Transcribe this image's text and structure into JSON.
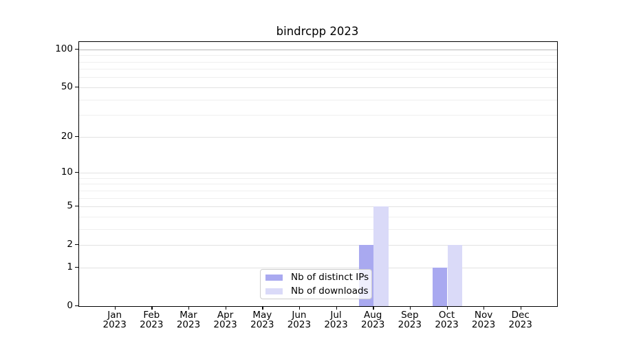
{
  "chart_data": {
    "type": "bar",
    "title": "bindrcpp 2023",
    "year": "2023",
    "categories": [
      "Jan",
      "Feb",
      "Mar",
      "Apr",
      "May",
      "Jun",
      "Jul",
      "Aug",
      "Sep",
      "Oct",
      "Nov",
      "Dec"
    ],
    "series": [
      {
        "name": "Nb of distinct IPs",
        "color": "#a9a9f0",
        "values": [
          0,
          0,
          0,
          0,
          0,
          0,
          0,
          2,
          0,
          1,
          0,
          0
        ]
      },
      {
        "name": "Nb of downloads",
        "color": "#dadaf8",
        "values": [
          0,
          0,
          0,
          0,
          0,
          0,
          0,
          5,
          0,
          2,
          0,
          0
        ]
      }
    ],
    "xlabel": "",
    "ylabel": "",
    "yscale": "log1p",
    "ylim": [
      0,
      117
    ],
    "y_ticks": [
      0,
      1,
      2,
      5,
      10,
      20,
      50,
      100
    ],
    "y_minor_ticks": [
      3,
      4,
      6,
      7,
      8,
      9,
      30,
      40,
      60,
      70,
      80,
      90
    ],
    "grid": "horizontal",
    "legend_position": "lower center"
  }
}
